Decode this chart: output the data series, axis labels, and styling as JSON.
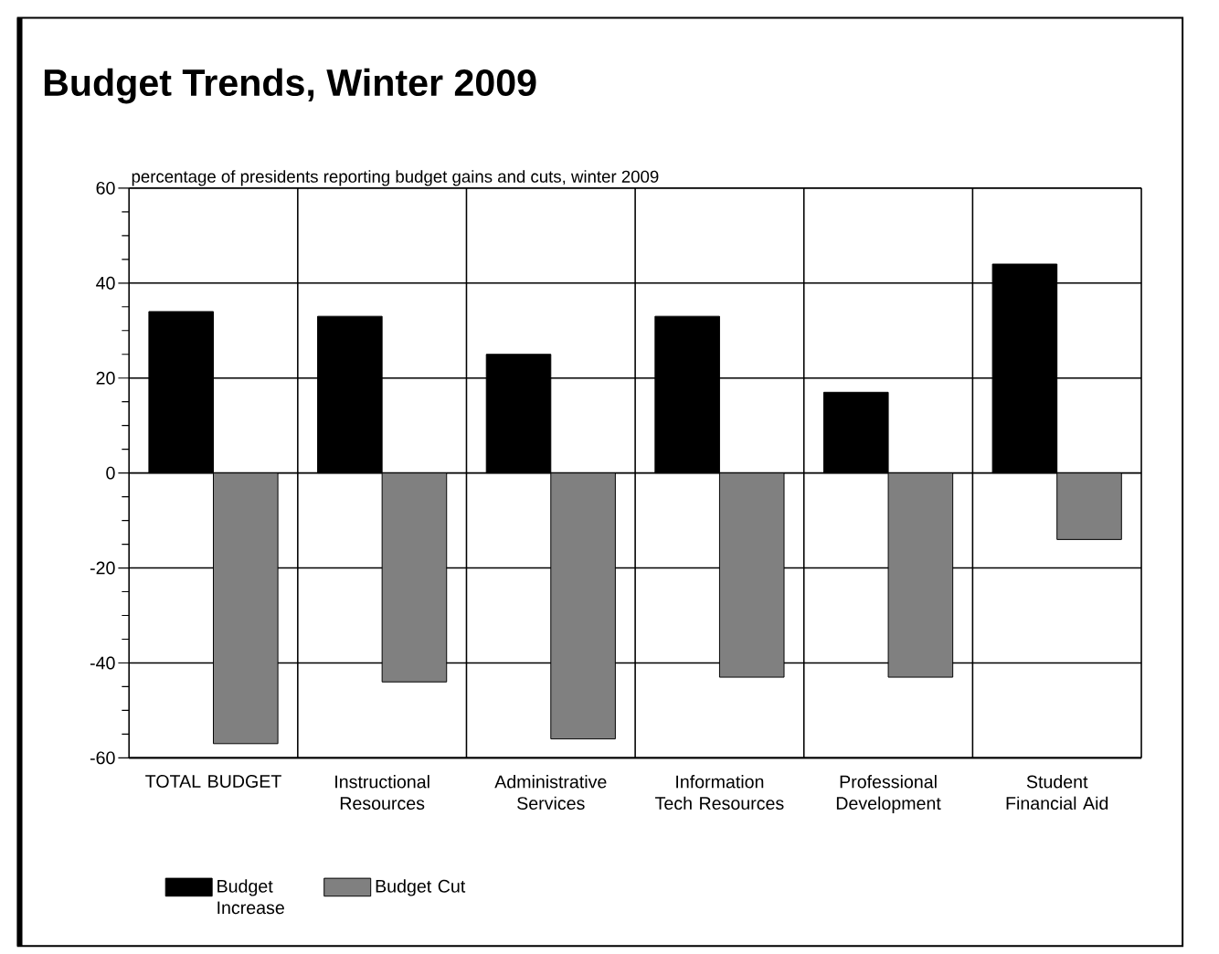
{
  "chart_data": {
    "type": "bar",
    "title": "Budget Trends, Winter 2009",
    "subtitle": "percentage of presidents reporting budget gains and cuts, winter 2009",
    "categories": [
      "TOTAL BUDGET",
      "Instructional Resources",
      "Administrative Services",
      "Information Tech Resources",
      "Professional Development",
      "Student Financial Aid"
    ],
    "series": [
      {
        "name": "Budget Increase",
        "color": "#000000",
        "values": [
          34,
          33,
          25,
          33,
          17,
          44
        ]
      },
      {
        "name": "Budget Cut",
        "color": "#808080",
        "values": [
          -57,
          -44,
          -56,
          -43,
          -43,
          -14
        ]
      }
    ],
    "ylim": [
      -60,
      60
    ],
    "yticks": [
      -60,
      -40,
      -20,
      0,
      20,
      40,
      60
    ],
    "grid": true,
    "legend": "bottom left"
  }
}
